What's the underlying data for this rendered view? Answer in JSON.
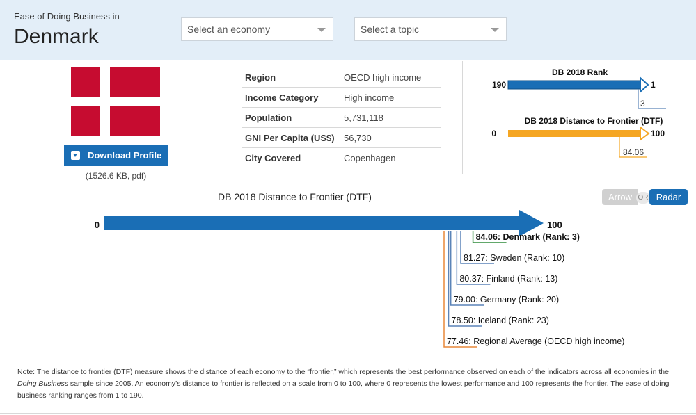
{
  "header": {
    "kicker": "Ease of Doing Business in",
    "country": "Denmark",
    "economy_select": "Select an economy",
    "topic_select": "Select a topic"
  },
  "profile": {
    "flag_icon": "denmark-flag",
    "download_label": "Download Profile",
    "download_icon": "download-icon",
    "file_size": "(1526.6 KB, pdf)"
  },
  "info": [
    {
      "label": "Region",
      "value": "OECD high income"
    },
    {
      "label": "Income Category",
      "value": "High income"
    },
    {
      "label": "Population",
      "value": "5,731,118"
    },
    {
      "label": "GNI Per Capita (US$)",
      "value": "56,730"
    },
    {
      "label": "City Covered",
      "value": "Copenhagen"
    }
  ],
  "mini": {
    "rank_title": "DB 2018 Rank",
    "rank_left": "190",
    "rank_right": "1",
    "rank_value": "3",
    "dtf_title": "DB 2018 Distance to Frontier (DTF)",
    "dtf_left": "0",
    "dtf_right": "100",
    "dtf_value": "84.06"
  },
  "toggle": {
    "arrow": "Arrow",
    "or": "OR",
    "radar": "Radar"
  },
  "colors": {
    "brand_blue": "#1a6eb5",
    "orange": "#f5a623",
    "green": "#2e8b3a",
    "steel_blue": "#5b84b8",
    "regional_orange": "#e8893a"
  },
  "chart_data": {
    "type": "arrow",
    "title": "DB 2018 Distance to Frontier (DTF)",
    "xlim": [
      0,
      100
    ],
    "axis_left_label": "0",
    "axis_right_label": "100",
    "points": [
      {
        "value": 84.06,
        "label": "84.06: Denmark (Rank: 3)",
        "highlight": true
      },
      {
        "value": 81.27,
        "label": "81.27: Sweden (Rank: 10)"
      },
      {
        "value": 80.37,
        "label": "80.37: Finland (Rank: 13)"
      },
      {
        "value": 79.0,
        "label": "79.00: Germany (Rank: 20)"
      },
      {
        "value": 78.5,
        "label": "78.50: Iceland (Rank: 23)"
      },
      {
        "value": 77.46,
        "label": "77.46: Regional Average (OECD high income)",
        "regional": true
      }
    ]
  },
  "note": {
    "part1": "Note: The distance to frontier (DTF) measure shows the distance of each economy to the “frontier,” which represents the best performance observed on each of the indicators across all economies in the ",
    "italic": "Doing Business",
    "part2": " sample since 2005. An economy’s distance to frontier is reflected on a scale from 0 to 100, where 0 represents the lowest performance and 100 represents the frontier. The ease of doing business ranking ranges from 1 to 190."
  }
}
